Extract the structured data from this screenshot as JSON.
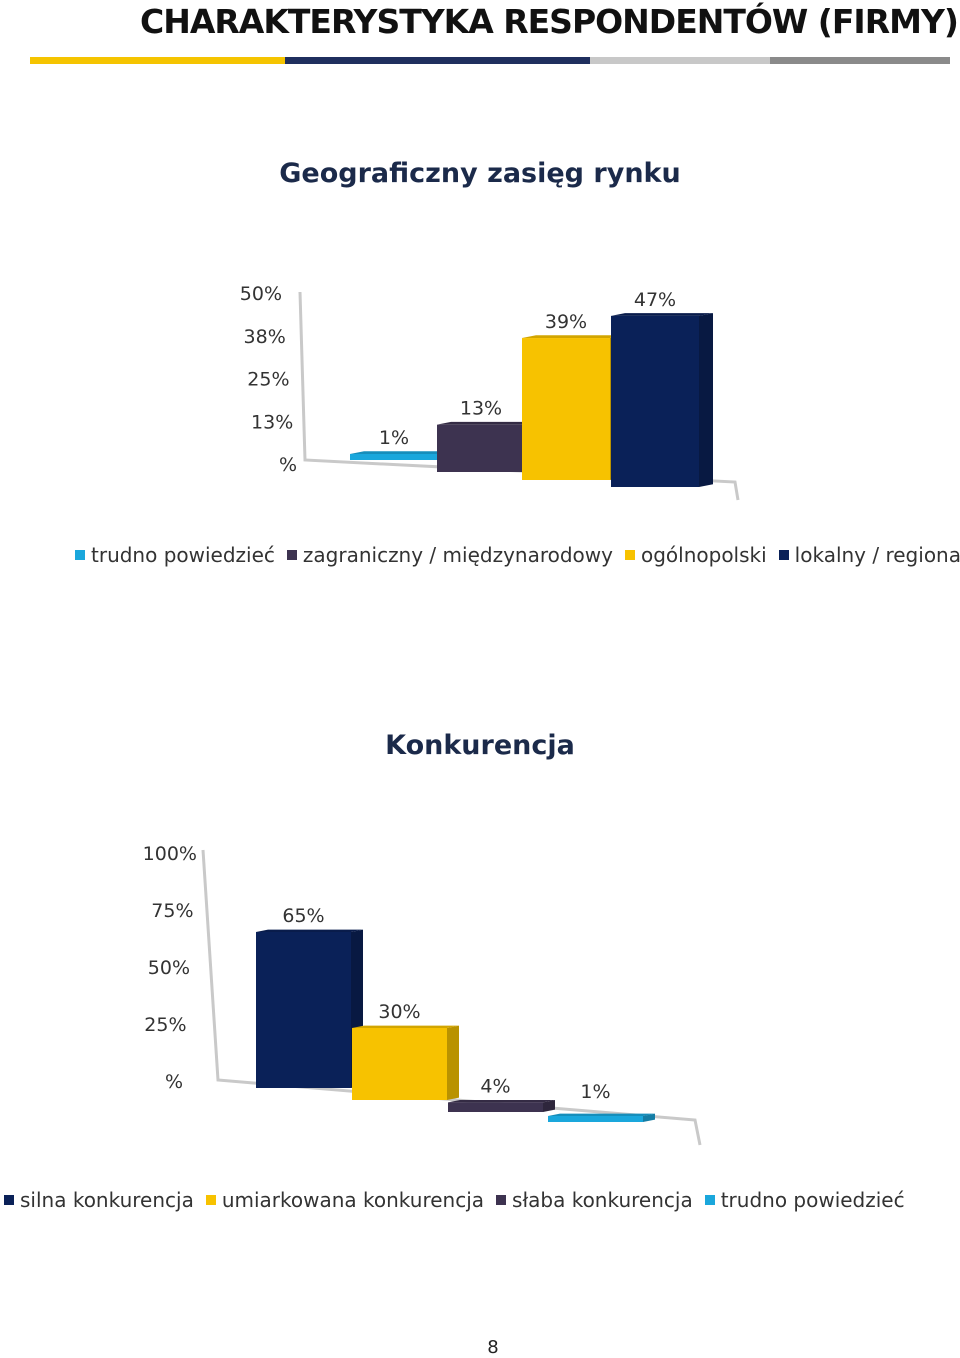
{
  "page": {
    "title": "CHARAKTERYSTYKA RESPONDENTÓW (FIRMY)",
    "title_rule_colors": [
      "#f5c400",
      "#1f2f5e",
      "#c8c8c8",
      "#8a8a8a"
    ],
    "page_number": "8"
  },
  "chart_data": [
    {
      "type": "bar",
      "title": "Geograficzny zasięg rynku",
      "categories": [
        "trudno powiedzieć",
        "zagraniczny / międzynarodowy",
        "ogólnopolski",
        "lokalny / regionalny"
      ],
      "values": [
        1,
        13,
        39,
        47
      ],
      "value_labels": [
        "1%",
        "13%",
        "39%",
        "47%"
      ],
      "colors": [
        "#1aa7dc",
        "#3d3350",
        "#f7c200",
        "#0a2158"
      ],
      "y_ticks": [
        "%",
        "13%",
        "25%",
        "38%",
        "50%"
      ],
      "ylim": [
        0,
        50
      ],
      "legend_position": "bottom",
      "grid": false
    },
    {
      "type": "bar",
      "title": "Konkurencja",
      "categories": [
        "silna konkurencja",
        "umiarkowana konkurencja",
        "słaba konkurencja",
        "trudno powiedzieć"
      ],
      "values": [
        65,
        30,
        4,
        1
      ],
      "value_labels": [
        "65%",
        "30%",
        "4%",
        "1%"
      ],
      "colors": [
        "#0a2158",
        "#f7c200",
        "#3d3350",
        "#1aa7dc"
      ],
      "y_ticks": [
        "%",
        "25%",
        "50%",
        "75%",
        "100%"
      ],
      "ylim": [
        0,
        100
      ],
      "legend_position": "bottom",
      "grid": false
    }
  ]
}
